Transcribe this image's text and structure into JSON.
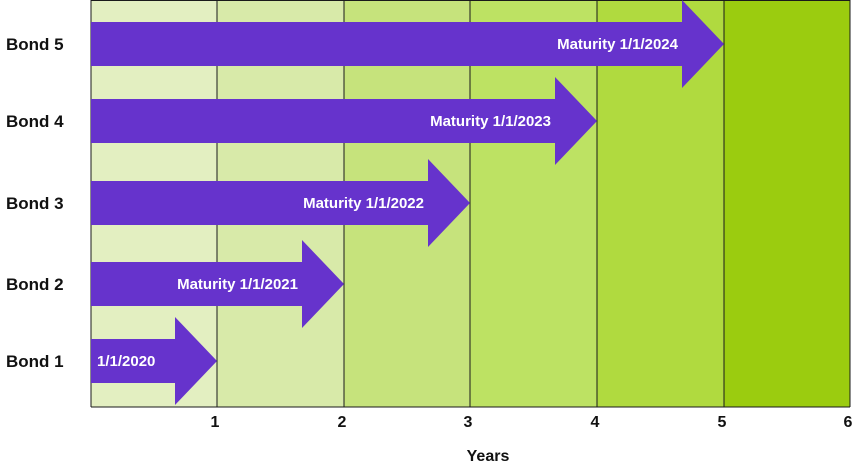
{
  "diagram": {
    "x_axis": {
      "title": "Years",
      "ticks": [
        "1",
        "2",
        "3",
        "4",
        "5",
        "6"
      ]
    },
    "bands": [
      {
        "from": 0,
        "to": 1,
        "color": "#e3efc1"
      },
      {
        "from": 1,
        "to": 2,
        "color": "#d8eaa9"
      },
      {
        "from": 2,
        "to": 3,
        "color": "#c6e37c"
      },
      {
        "from": 3,
        "to": 4,
        "color": "#bde263"
      },
      {
        "from": 4,
        "to": 5,
        "color": "#b0da3f"
      },
      {
        "from": 5,
        "to": 6,
        "color": "#9bcc0f"
      }
    ],
    "arrow_color": "#6633cc",
    "bonds": [
      {
        "name": "Bond 5",
        "maturity_years": 5,
        "label": "Maturity 1/1/2024"
      },
      {
        "name": "Bond 4",
        "maturity_years": 4,
        "label": "Maturity 1/1/2023"
      },
      {
        "name": "Bond 3",
        "maturity_years": 3,
        "label": "Maturity 1/1/2022"
      },
      {
        "name": "Bond 2",
        "maturity_years": 2,
        "label": "Maturity 1/1/2021"
      },
      {
        "name": "Bond 1",
        "maturity_years": 1,
        "label": "1/1/2020"
      }
    ]
  }
}
